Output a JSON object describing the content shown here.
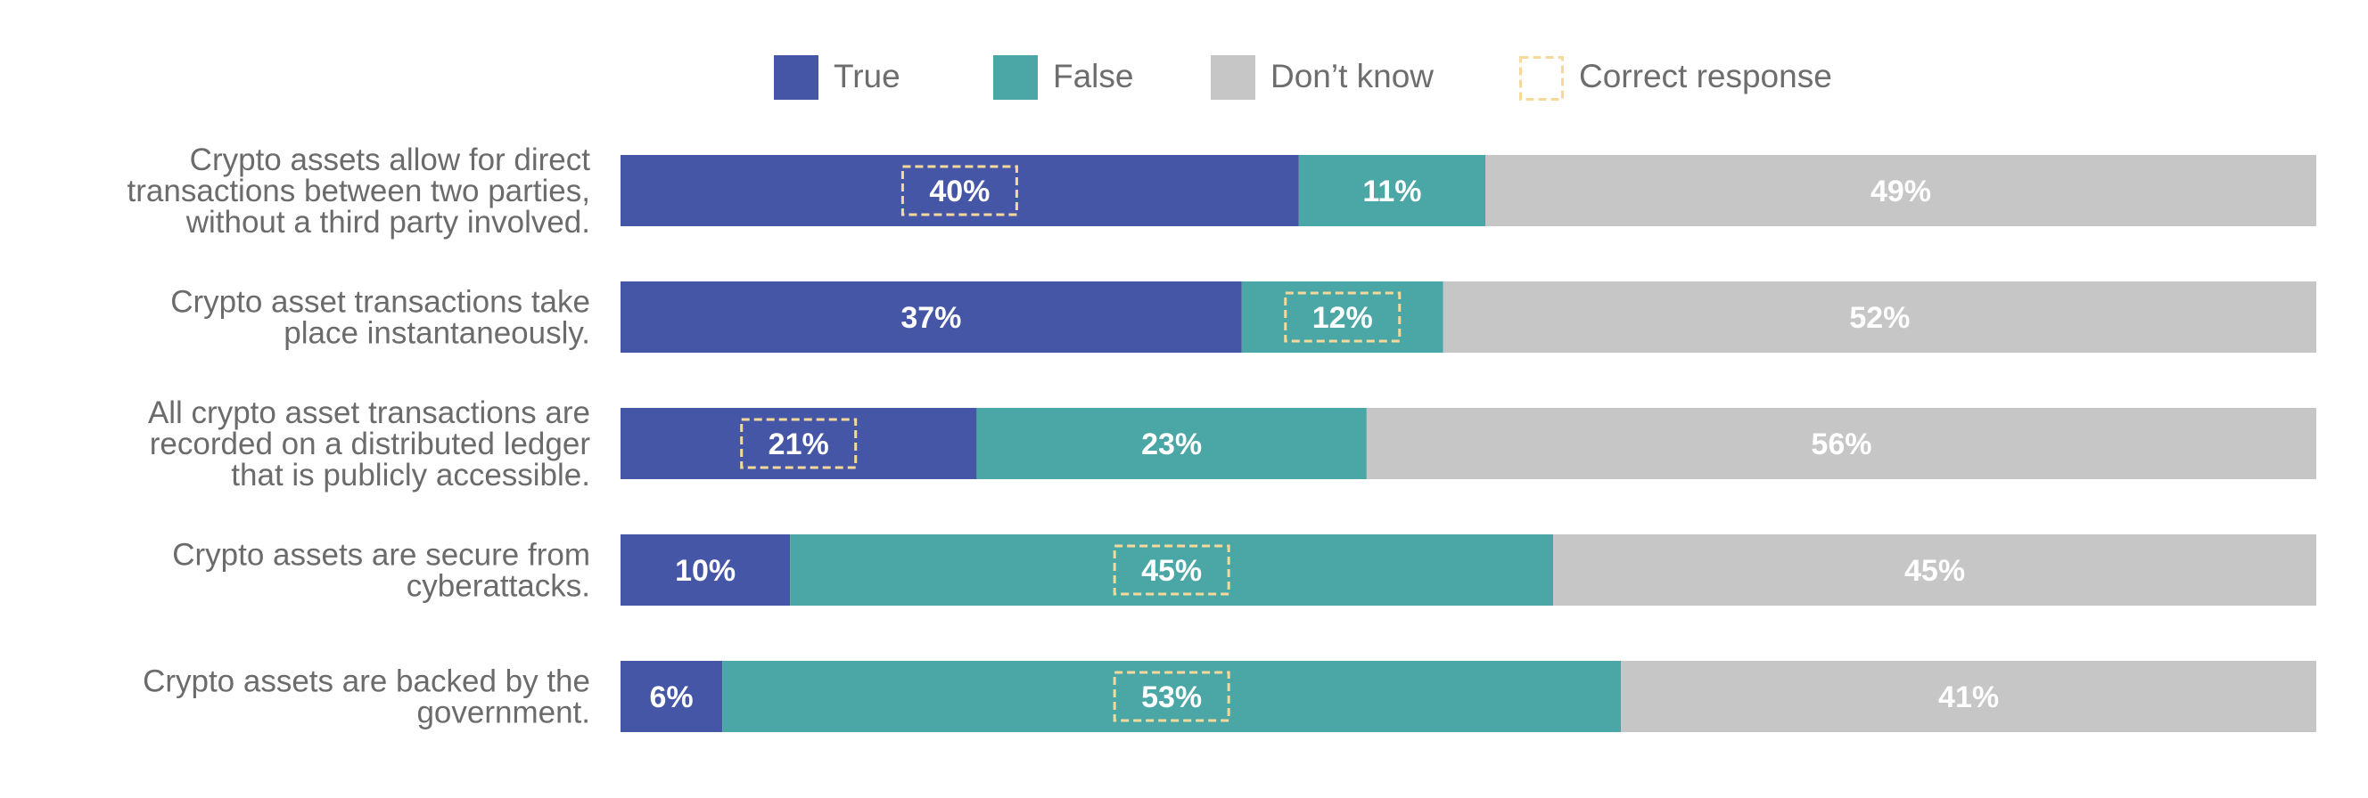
{
  "chart_data": {
    "type": "bar",
    "orientation": "horizontal",
    "stacked": true,
    "categories": [
      [
        "Crypto assets allow for direct",
        "transactions between two parties,",
        "without a third party involved."
      ],
      [
        "Crypto asset transactions take",
        "place instantaneously."
      ],
      [
        "All crypto asset transactions are",
        "recorded on a distributed ledger",
        "that is publicly accessible."
      ],
      [
        "Crypto assets are secure from",
        "cyberattacks."
      ],
      [
        "Crypto assets are backed by the",
        "government."
      ]
    ],
    "series": [
      {
        "name": "True",
        "color": "#4556a6",
        "values": [
          40,
          37,
          21,
          10,
          6
        ]
      },
      {
        "name": "False",
        "color": "#4ba6a6",
        "values": [
          11,
          12,
          23,
          45,
          53
        ]
      },
      {
        "name": "Don’t know",
        "color": "#c6c6c6",
        "values": [
          49,
          52,
          56,
          45,
          41
        ]
      }
    ],
    "correct_response": {
      "label": "Correct response",
      "color": "#f6d99a",
      "series_index": [
        0,
        1,
        0,
        1,
        1
      ]
    },
    "value_suffix": "%",
    "legend_position": "top",
    "grid": false
  }
}
